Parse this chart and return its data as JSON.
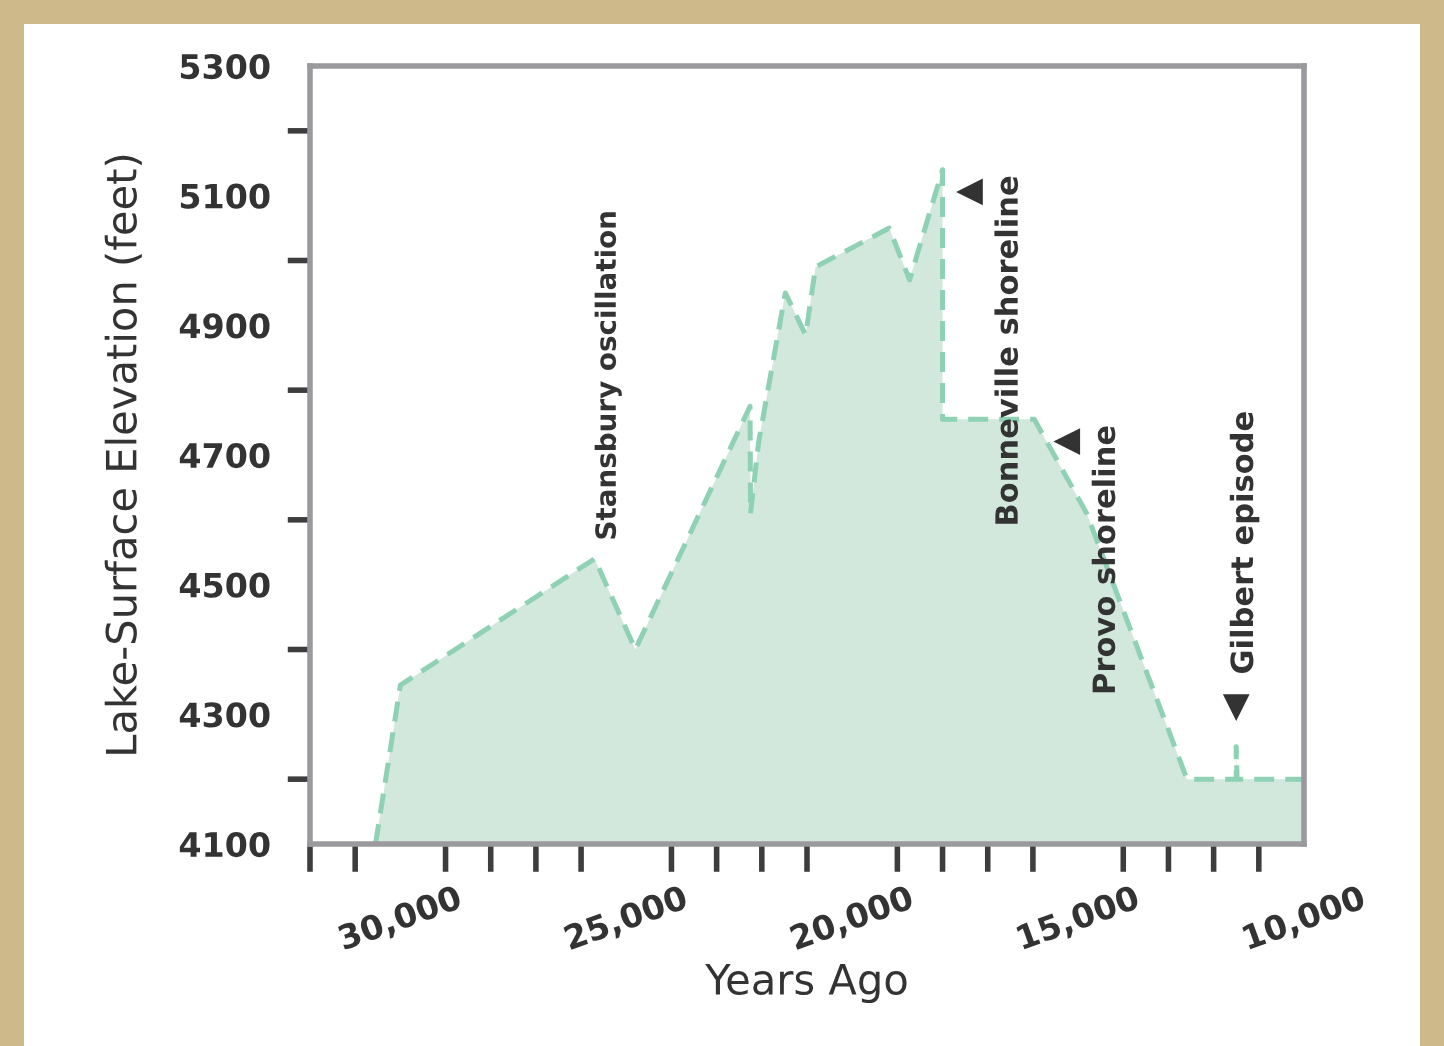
{
  "chart_data": {
    "type": "area",
    "xlabel": "Years Ago",
    "ylabel": "Lake-Surface Elevation (feet)",
    "xlim": [
      32000,
      10000
    ],
    "xticks": [
      {
        "value": 30000,
        "label": "30,000"
      },
      {
        "value": 25000,
        "label": "25,000"
      },
      {
        "value": 20000,
        "label": "20,000"
      },
      {
        "value": 15000,
        "label": "15,000"
      },
      {
        "value": 10000,
        "label": "10,000"
      }
    ],
    "ylim": [
      4100,
      5300
    ],
    "yticks": [
      4100,
      4300,
      4500,
      4700,
      4900,
      5100,
      5300
    ],
    "x": [
      30550,
      30000,
      25700,
      24800,
      22260,
      22250,
      22070,
      21480,
      21030,
      20810,
      19180,
      18730,
      18000,
      18000,
      15970,
      14810,
      12590,
      11500,
      11500,
      11480,
      10000
    ],
    "series": [
      {
        "color": "#8fd1b4",
        "values": [
          4100,
          4345,
          4540,
          4400,
          4775,
          4610,
          4720,
          4950,
          4885,
          4990,
          5050,
          4970,
          5140,
          4755,
          4755,
          4610,
          4200,
          4200,
          4250,
          4200,
          4200
        ]
      }
    ],
    "line_style": "dashed",
    "marker": "none",
    "grid": false,
    "legend": false,
    "annotations": [
      "Stansbury oscillation",
      {
        "text": "Bonneville shoreline",
        "x": 18000,
        "y": 5140
      },
      {
        "text": "Provo shoreline",
        "x": 15970,
        "y": 4755
      },
      {
        "text": "Gilbert episode",
        "x": 11500,
        "y": 4250
      }
    ]
  }
}
